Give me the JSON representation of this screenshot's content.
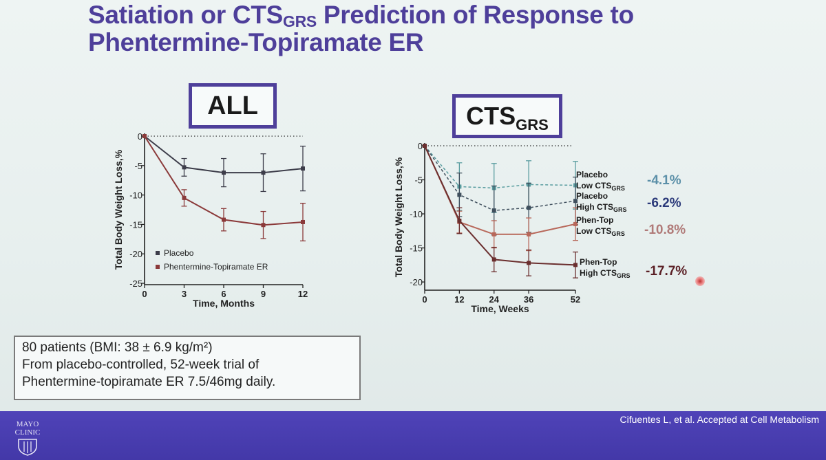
{
  "slide": {
    "title_main": "Satiation or CTS",
    "title_sub": "GRS",
    "title_rest": " Prediction of Response to",
    "title_line2": "Phentermine-Topiramate ER"
  },
  "left_panel": {
    "label": "ALL"
  },
  "right_panel": {
    "label_main": "CTS",
    "label_sub": "GRS"
  },
  "info": {
    "line1": "80 patients  (BMI: 38 ± 6.9 kg/m²)",
    "line2": "From placebo-controlled, 52-week trial of",
    "line3": "Phentermine-topiramate ER 7.5/46mg daily."
  },
  "footer": {
    "citation": "Cifuentes L, et al. Accepted at Cell Metabolism",
    "logo_line1": "MAYO",
    "logo_line2": "CLINIC"
  },
  "colors": {
    "title": "#4e3f9a",
    "placebo": "#3d3d4a",
    "phen": "#8b3a3a",
    "placebo_low": "#5a9da0",
    "placebo_high": "#3f4f5d",
    "phen_low": "#b8685a",
    "phen_high": "#6b2f2f",
    "pct_low_placebo": "#5b8fa8",
    "pct_high_placebo": "#2b3a7a",
    "pct_low_phen": "#b07a78",
    "pct_high_phen": "#5a1f25"
  },
  "chart_data": [
    {
      "type": "line",
      "title": "ALL",
      "xlabel": "Time, Months",
      "ylabel": "Total Body Weight Loss,%",
      "x": [
        0,
        3,
        6,
        9,
        12
      ],
      "xticks": [
        "0",
        "3",
        "6",
        "9",
        "12"
      ],
      "yticks": [
        "0",
        "-5",
        "-10",
        "-15",
        "-20",
        "-25"
      ],
      "xlim": [
        0,
        12
      ],
      "ylim": [
        -25,
        0
      ],
      "legend": "bottom-left",
      "series": [
        {
          "name": "Placebo",
          "values": [
            0,
            -5.3,
            -6.2,
            -6.2,
            -5.5
          ],
          "err": [
            0,
            1.5,
            2.4,
            3.2,
            3.8
          ],
          "style": "solid"
        },
        {
          "name": "Phentermine-Topiramate ER",
          "values": [
            0,
            -10.5,
            -14.2,
            -15.1,
            -14.6
          ],
          "err": [
            0,
            1.4,
            1.9,
            2.3,
            3.2
          ],
          "style": "solid"
        }
      ]
    },
    {
      "type": "line",
      "title": "CTSGRS",
      "xlabel": "Time, Weeks",
      "ylabel": "Total Body Weight Loss,%",
      "x": [
        0,
        12,
        24,
        36,
        52
      ],
      "xticks": [
        "0",
        "12",
        "24",
        "36",
        "52"
      ],
      "yticks": [
        "0",
        "-5",
        "-10",
        "-15",
        "-20"
      ],
      "xlim": [
        0,
        52
      ],
      "ylim": [
        -21,
        0
      ],
      "series": [
        {
          "name": "Placebo",
          "sub": "Low CTS",
          "subscript": "GRS",
          "pct": "-4.1%",
          "values": [
            0,
            -6.0,
            -6.2,
            -5.7,
            -5.8
          ],
          "err": [
            0,
            3.5,
            3.6,
            3.5,
            3.5
          ],
          "style": "dashed"
        },
        {
          "name": "Placebo",
          "sub": "High CTS",
          "subscript": "GRS",
          "pct": "-6.2%",
          "values": [
            0,
            -7.2,
            -9.5,
            -9.1,
            -8.1
          ],
          "err": [
            0,
            3.2,
            3.6,
            3.6,
            3.5
          ],
          "style": "dashed"
        },
        {
          "name": "Phen-Top",
          "sub": "Low CTS",
          "subscript": "GRS",
          "pct": "-10.8%",
          "values": [
            0,
            -11.2,
            -13.0,
            -13.0,
            -11.5
          ],
          "err": [
            0,
            1.6,
            2.0,
            2.4,
            2.4
          ],
          "style": "solid"
        },
        {
          "name": "Phen-Top",
          "sub": "High CTS",
          "subscript": "GRS",
          "pct": "-17.7%",
          "values": [
            0,
            -11.0,
            -16.7,
            -17.2,
            -17.5
          ],
          "err": [
            0,
            1.9,
            1.8,
            1.9,
            1.9
          ],
          "style": "solid"
        }
      ]
    }
  ]
}
